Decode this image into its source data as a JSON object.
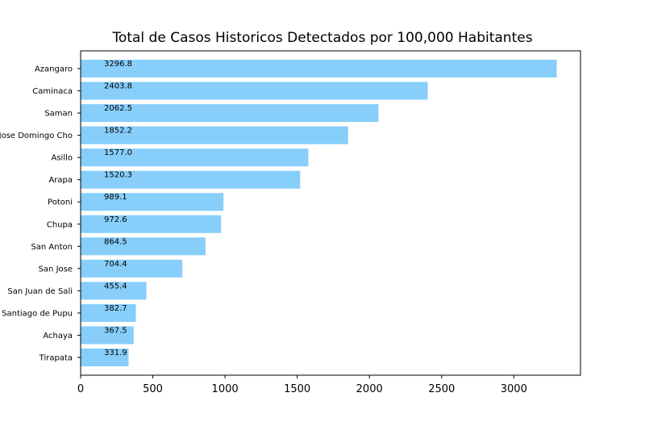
{
  "chart_data": {
    "type": "bar",
    "orientation": "horizontal",
    "title": "Total de Casos Historicos Detectados por 100,000 Habitantes",
    "xlabel": "",
    "ylabel": "",
    "categories": [
      "Azangaro",
      "Caminaca",
      "Saman",
      "Jose Domingo Cho",
      "Asillo",
      "Arapa",
      "Potoni",
      "Chupa",
      "San Anton",
      "San Jose",
      "San Juan de Sali",
      "Santiago de Pupu",
      "Achaya",
      "Tirapata"
    ],
    "values": [
      3296.8,
      2403.8,
      2062.5,
      1852.2,
      1577.0,
      1520.3,
      989.1,
      972.6,
      864.5,
      704.4,
      455.4,
      382.7,
      367.5,
      331.9
    ],
    "data_labels": [
      "3296.8",
      "2403.8",
      "2062.5",
      "1852.2",
      "1577.0",
      "1520.3",
      "989.1",
      "972.6",
      "864.5",
      "704.4",
      "455.4",
      "382.7",
      "367.5",
      "331.9"
    ],
    "xlim": [
      0,
      3461.6
    ],
    "xticks": [
      0,
      500,
      1000,
      1500,
      2000,
      2500,
      3000
    ],
    "xtick_labels": [
      "0",
      "500",
      "1000",
      "1500",
      "2000",
      "2500",
      "3000"
    ],
    "bar_color": "#87cefa",
    "grid": false,
    "legend": "none"
  }
}
